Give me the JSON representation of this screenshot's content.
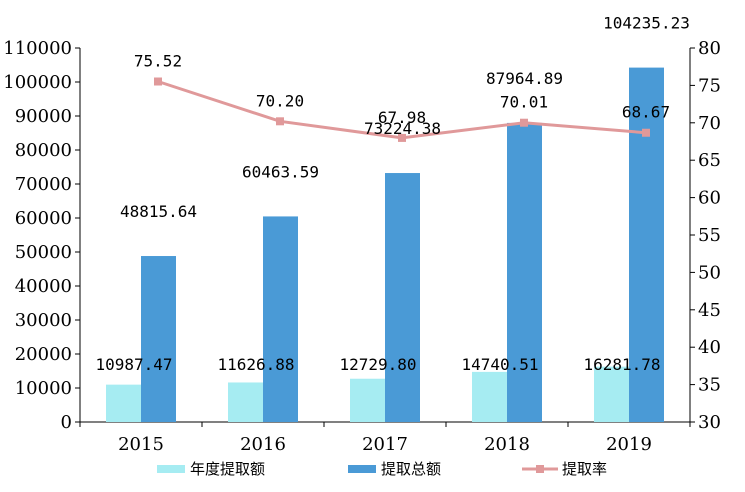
{
  "chart_data": {
    "type": "bar",
    "categories": [
      "2015",
      "2016",
      "2017",
      "2018",
      "2019"
    ],
    "series": [
      {
        "name": "年度提取额",
        "kind": "bar",
        "axis": "left",
        "color": "#a6ecf2",
        "values": [
          10987.47,
          11626.88,
          12729.8,
          14740.51,
          16281.78
        ],
        "labels": [
          "10987.47",
          "11626.88",
          "12729.80",
          "14740.51",
          "16281.78"
        ]
      },
      {
        "name": "提取总额",
        "kind": "bar",
        "axis": "left",
        "color": "#4a9ad6",
        "values": [
          48815.64,
          60463.59,
          73224.38,
          87964.89,
          104235.23
        ],
        "labels": [
          "48815.64",
          "60463.59",
          "73224.38",
          "87964.89",
          "104235.23"
        ]
      },
      {
        "name": "提取率",
        "kind": "line",
        "axis": "right",
        "color": "#e0999a",
        "values": [
          75.52,
          70.2,
          67.98,
          70.01,
          68.67
        ],
        "labels": [
          "75.52",
          "70.20",
          "67.98",
          "70.01",
          "68.67"
        ]
      }
    ],
    "y_left": {
      "min": 0,
      "max": 110000,
      "step": 10000,
      "ticks": [
        "0",
        "10000",
        "20000",
        "30000",
        "40000",
        "50000",
        "60000",
        "70000",
        "80000",
        "90000",
        "100000",
        "110000"
      ]
    },
    "y_right": {
      "min": 30,
      "max": 80,
      "step": 5,
      "ticks": [
        "30",
        "35",
        "40",
        "45",
        "50",
        "55",
        "60",
        "65",
        "70",
        "75",
        "80"
      ]
    },
    "legend": {
      "position": "bottom"
    },
    "grid": false
  }
}
